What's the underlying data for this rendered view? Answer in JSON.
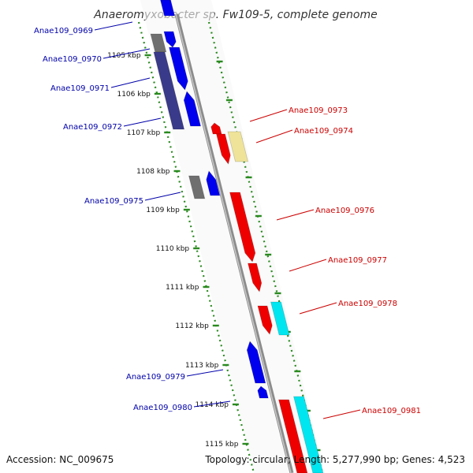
{
  "title": "Anaeromyxobacter sp. Fw109-5, complete genome",
  "footer": {
    "accession": "Accession: NC_009675",
    "summary": "Topology: circular; Length: 5,277,990 bp; Genes: 4,523"
  },
  "colors": {
    "backbone": "#8c8c8c",
    "tick_marks": "#2a8a1f",
    "gene_blue": "#0000ee",
    "gene_red": "#ee0000",
    "gene_cyan": "#00e6f0",
    "gene_gray": "#6f6f6f",
    "gene_yellow": "#efe39a",
    "gene_navy": "#3a3a8a",
    "label_blue": "#0000aa",
    "label_red": "#cc0000"
  },
  "ticks": [
    {
      "label": "1105 kbp"
    },
    {
      "label": "1106 kbp"
    },
    {
      "label": "1107 kbp"
    },
    {
      "label": "1108 kbp"
    },
    {
      "label": "1109 kbp"
    },
    {
      "label": "1110 kbp"
    },
    {
      "label": "1111 kbp"
    },
    {
      "label": "1112 kbp"
    },
    {
      "label": "1113 kbp"
    },
    {
      "label": "1114 kbp"
    },
    {
      "label": "1115 kbp"
    }
  ],
  "gene_labels_left": [
    {
      "text": "Anae109_0969"
    },
    {
      "text": "Anae109_0970"
    },
    {
      "text": "Anae109_0971"
    },
    {
      "text": "Anae109_0972"
    },
    {
      "text": "Anae109_0975"
    },
    {
      "text": "Anae109_0979"
    },
    {
      "text": "Anae109_0980"
    }
  ],
  "gene_labels_right": [
    {
      "text": "Anae109_0973"
    },
    {
      "text": "Anae109_0974"
    },
    {
      "text": "Anae109_0976"
    },
    {
      "text": "Anae109_0977"
    },
    {
      "text": "Anae109_0978"
    },
    {
      "text": "Anae109_0981"
    }
  ]
}
